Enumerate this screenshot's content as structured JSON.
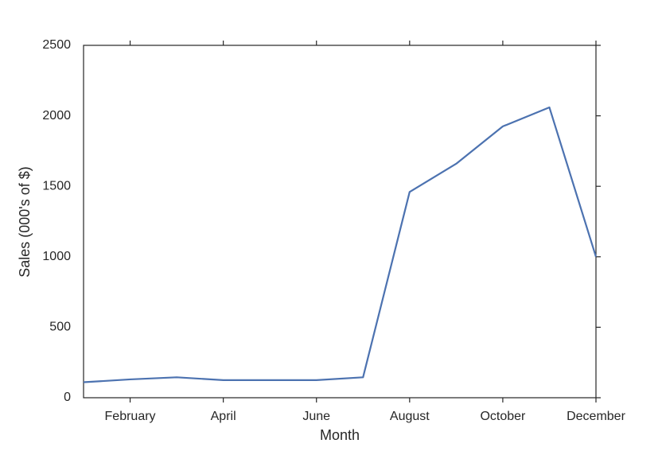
{
  "chart_data": {
    "type": "line",
    "x_label": "Month",
    "y_label": "Sales (000's of $)",
    "categories": [
      null,
      "February",
      null,
      "April",
      null,
      "June",
      null,
      "August",
      null,
      "October",
      null,
      "December"
    ],
    "values": [
      110,
      130,
      145,
      125,
      125,
      125,
      145,
      1460,
      1660,
      1925,
      2060,
      1000
    ],
    "color": "#4c72b0",
    "ylim": [
      0,
      2500
    ],
    "yticks": [
      0,
      500,
      1000,
      1500,
      2000,
      2500
    ],
    "grid": false
  }
}
